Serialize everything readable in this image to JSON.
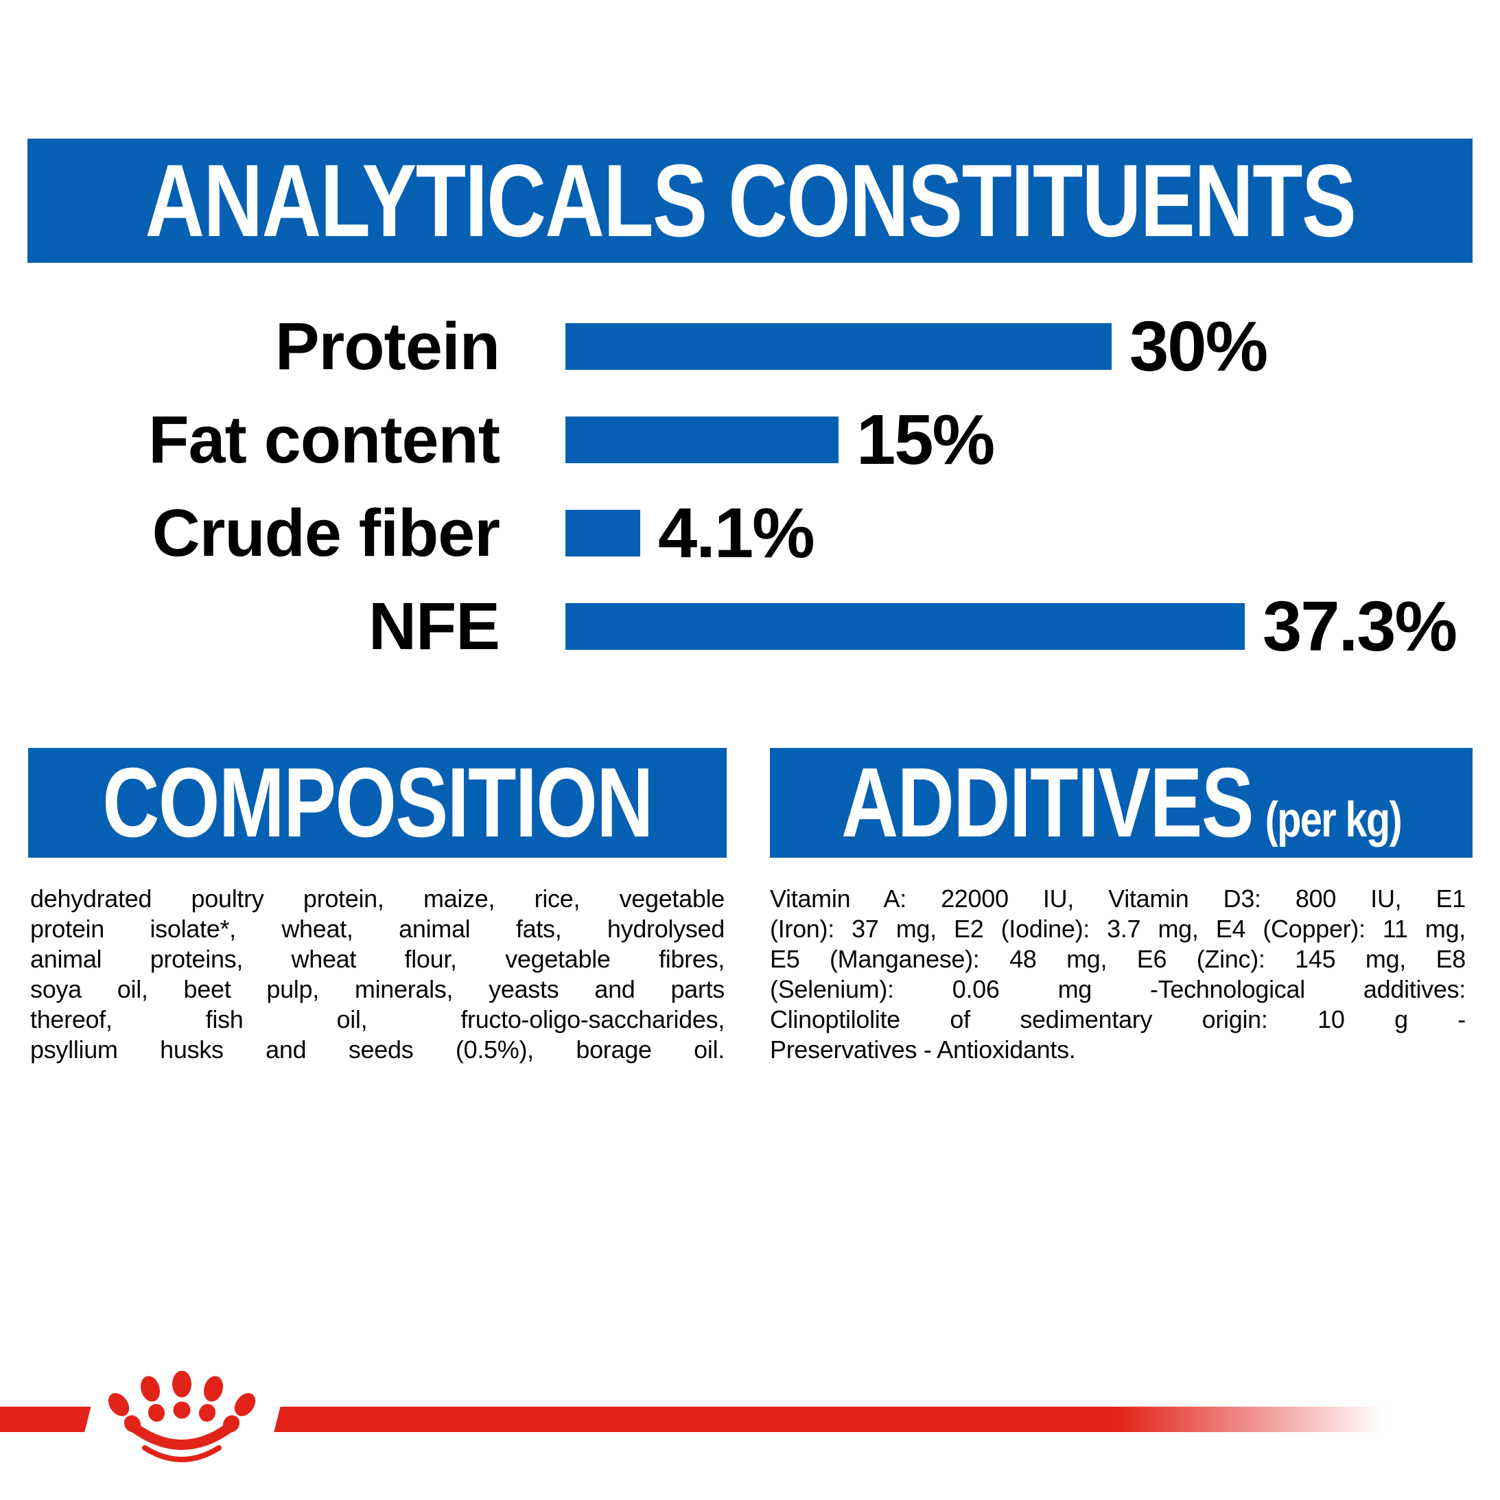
{
  "header": {
    "title": "ANALYTICALS CONSTITUENTS"
  },
  "chart_data": {
    "type": "bar",
    "orientation": "horizontal",
    "title": "ANALYTICALS CONSTITUENTS",
    "categories": [
      "Protein",
      "Fat content",
      "Crude fiber",
      "NFE"
    ],
    "values": [
      30,
      15,
      4.1,
      37.3
    ],
    "value_labels": [
      "30%",
      "15%",
      "4.1%",
      "37.3%"
    ],
    "xlim": [
      0,
      37.3
    ],
    "bar_color": "#0560B4",
    "grid": false,
    "legend": false
  },
  "composition": {
    "heading": "COMPOSITION",
    "lines": [
      "dehydrated poultry protein, maize, rice, vegetable",
      "protein isolate*, wheat, animal fats, hydrolysed",
      "animal proteins, wheat flour, vegetable fibres,",
      "soya oil, beet pulp, minerals, yeasts and parts",
      "thereof, fish oil, fructo-oligo-saccharides,",
      "psyllium husks and seeds (0.5%), borage oil."
    ]
  },
  "additives": {
    "heading": "ADDITIVES",
    "unit_suffix": "(per kg)",
    "lines": [
      "Vitamin A: 22000 IU, Vitamin D3: 800 IU, E1",
      "(Iron): 37 mg, E2 (Iodine): 3.7 mg, E4 (Copper): 11 mg,",
      "E5 (Manganese): 48 mg, E6 (Zinc): 145 mg, E8",
      "(Selenium): 0.06 mg -Technological additives:",
      "Clinoptilolite of sedimentary origin: 10 g -",
      "Preservatives - Antioxidants."
    ]
  },
  "colors": {
    "brand_blue": "#0560B4",
    "brand_red": "#E2231A",
    "header_text": "#FFFFFF",
    "body_text": "#060606"
  },
  "footer": {
    "logo": "royal-canin-crown-icon"
  }
}
